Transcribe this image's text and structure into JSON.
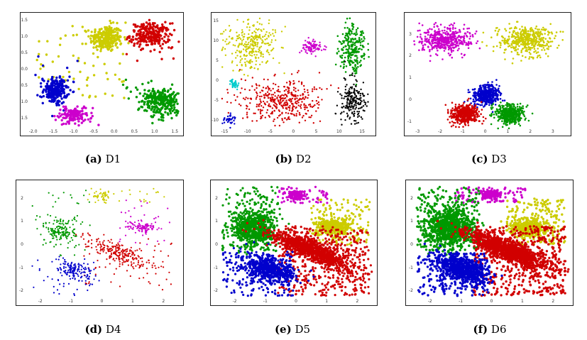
{
  "figure": {
    "captions": [
      {
        "id": "a",
        "letter": "(a)",
        "label": "D1"
      },
      {
        "id": "b",
        "letter": "(b)",
        "label": "D2"
      },
      {
        "id": "c",
        "letter": "(c)",
        "label": "D3"
      },
      {
        "id": "d",
        "letter": "(d)",
        "label": "D4"
      },
      {
        "id": "e",
        "letter": "(e)",
        "label": "D5"
      },
      {
        "id": "f",
        "letter": "(f)",
        "label": "D6"
      }
    ]
  },
  "colors": {
    "red": "#d10000",
    "green": "#009900",
    "blue": "#0000cc",
    "yellow": "#cccc00",
    "magenta": "#cc00cc",
    "cyan": "#00cccc",
    "black": "#000000"
  },
  "chart_data": [
    {
      "id": "D1",
      "type": "scatter",
      "xlim": [
        -2.1,
        1.6
      ],
      "ylim": [
        -1.8,
        1.6
      ],
      "xticks": [
        "-2.0",
        "-1.5",
        "-1.0",
        "-0.5",
        "0.0",
        "0.5",
        "1.0",
        "1.5"
      ],
      "yticks": [
        "1.5",
        "1.0",
        "0.5",
        "0.0",
        "-0.5",
        "-1.0",
        "-1.5"
      ],
      "xtick_values": [
        -2.0,
        -1.5,
        -1.0,
        -0.5,
        0.0,
        0.5,
        1.0,
        1.5
      ],
      "ytick_values": [
        1.5,
        1.0,
        0.5,
        0.0,
        -0.5,
        -1.0,
        -1.5
      ],
      "series": [
        {
          "color": "yellow",
          "clusters": [
            {
              "cx": -0.2,
              "cy": 0.95,
              "sx": 0.2,
              "sy": 0.2,
              "n": 260,
              "r": 1.7
            }
          ],
          "noise": {
            "n": 60,
            "x": [
              -2.0,
              0.3
            ],
            "y": [
              -0.9,
              1.5
            ]
          }
        },
        {
          "color": "red",
          "clusters": [
            {
              "cx": 0.9,
              "cy": 1.05,
              "sx": 0.25,
              "sy": 0.18,
              "n": 240,
              "r": 1.7
            }
          ],
          "noise": {
            "n": 20,
            "x": [
              0.3,
              1.5
            ],
            "y": [
              0.2,
              1.5
            ]
          }
        },
        {
          "color": "blue",
          "clusters": [
            {
              "cx": -1.45,
              "cy": -0.65,
              "sx": 0.15,
              "sy": 0.2,
              "n": 200,
              "r": 1.7
            }
          ],
          "noise": {
            "n": 15,
            "x": [
              -2.0,
              -0.9
            ],
            "y": [
              -1.1,
              0.5
            ]
          }
        },
        {
          "color": "magenta",
          "clusters": [
            {
              "cx": -1.0,
              "cy": -1.4,
              "sx": 0.18,
              "sy": 0.12,
              "n": 150,
              "r": 1.7
            }
          ],
          "noise": {
            "n": 10,
            "x": [
              -1.3,
              -0.5
            ],
            "y": [
              -1.7,
              -1.0
            ]
          }
        },
        {
          "color": "green",
          "clusters": [
            {
              "cx": 1.15,
              "cy": -0.95,
              "sx": 0.25,
              "sy": 0.22,
              "n": 280,
              "r": 1.7
            }
          ],
          "noise": {
            "n": 20,
            "x": [
              0.1,
              1.5
            ],
            "y": [
              -1.5,
              -0.3
            ]
          }
        }
      ]
    },
    {
      "id": "D2",
      "type": "scatter",
      "xlim": [
        -16,
        17
      ],
      "ylim": [
        -12,
        16
      ],
      "xticks": [
        "-15",
        "-10",
        "-5",
        "0",
        "5",
        "10",
        "15"
      ],
      "yticks": [
        "15",
        "10",
        "5",
        "0",
        "-5",
        "-10"
      ],
      "xtick_values": [
        -15,
        -10,
        -5,
        0,
        5,
        10,
        15
      ],
      "ytick_values": [
        15,
        10,
        5,
        0,
        -5,
        -10
      ],
      "series": [
        {
          "color": "yellow",
          "clusters": [
            {
              "cx": -9,
              "cy": 9,
              "sx": 2.8,
              "sy": 3.2,
              "n": 300,
              "r": 1.2
            }
          ]
        },
        {
          "color": "magenta",
          "clusters": [
            {
              "cx": 4,
              "cy": 8.5,
              "sx": 1.2,
              "sy": 0.8,
              "n": 80,
              "r": 1.2
            }
          ]
        },
        {
          "color": "green",
          "clusters": [
            {
              "cx": 13,
              "cy": 8,
              "sx": 1.4,
              "sy": 3,
              "n": 250,
              "r": 1.3
            }
          ]
        },
        {
          "color": "cyan",
          "clusters": [
            {
              "cx": -13,
              "cy": -0.8,
              "sx": 0.7,
              "sy": 0.7,
              "n": 40,
              "r": 1.2
            }
          ]
        },
        {
          "color": "red",
          "clusters": [
            {
              "cx": -2.5,
              "cy": -5,
              "sx": 4.5,
              "sy": 2.7,
              "n": 400,
              "r": 1.2
            }
          ]
        },
        {
          "color": "black",
          "clusters": [
            {
              "cx": 13,
              "cy": -5,
              "sx": 1.5,
              "sy": 2.7,
              "n": 200,
              "r": 1.2
            }
          ]
        },
        {
          "color": "blue",
          "clusters": [
            {
              "cx": -14,
              "cy": -10,
              "sx": 0.7,
              "sy": 0.6,
              "n": 35,
              "r": 1.2
            }
          ]
        }
      ]
    },
    {
      "id": "D3",
      "type": "scatter",
      "xlim": [
        -3.2,
        3.6
      ],
      "ylim": [
        -1.3,
        3.8
      ],
      "xticks": [
        "-3",
        "-2",
        "-1",
        "0",
        "1",
        "2",
        "3"
      ],
      "yticks": [
        "3",
        "2",
        "1",
        "0",
        "-1"
      ],
      "xtick_values": [
        -3,
        -2,
        -1,
        0,
        1,
        2,
        3
      ],
      "ytick_values": [
        3,
        2,
        1,
        0,
        -1
      ],
      "series": [
        {
          "color": "magenta",
          "clusters": [
            {
              "cx": -1.8,
              "cy": 2.75,
              "sx": 0.55,
              "sy": 0.32,
              "n": 450,
              "r": 1.3
            }
          ]
        },
        {
          "color": "yellow",
          "clusters": [
            {
              "cx": 1.8,
              "cy": 2.75,
              "sx": 0.55,
              "sy": 0.32,
              "n": 450,
              "r": 1.3
            }
          ]
        },
        {
          "color": "blue",
          "clusters": [
            {
              "cx": 0.05,
              "cy": 0.25,
              "sx": 0.3,
              "sy": 0.22,
              "n": 450,
              "r": 1.3
            }
          ]
        },
        {
          "color": "red",
          "clusters": [
            {
              "cx": -0.9,
              "cy": -0.65,
              "sx": 0.3,
              "sy": 0.22,
              "n": 450,
              "r": 1.3
            }
          ]
        },
        {
          "color": "green",
          "clusters": [
            {
              "cx": 1.1,
              "cy": -0.65,
              "sx": 0.3,
              "sy": 0.22,
              "n": 450,
              "r": 1.3
            }
          ]
        }
      ]
    },
    {
      "id": "D4",
      "type": "scatter",
      "xlim": [
        -2.5,
        2.5
      ],
      "ylim": [
        -2.3,
        2.6
      ],
      "xticks": [
        "-2",
        "-1",
        "0",
        "1",
        "2"
      ],
      "yticks": [
        "2",
        "1",
        "0",
        "-1",
        "-2"
      ],
      "xtick_values": [
        -2,
        -1,
        0,
        1,
        2
      ],
      "ytick_values": [
        2,
        1,
        0,
        -1,
        -2
      ],
      "series": [
        {
          "color": "yellow",
          "clusters": [
            {
              "cx": 0.0,
              "cy": 2.1,
              "sx": 0.15,
              "sy": 0.1,
              "n": 40,
              "r": 1.1
            }
          ],
          "noise": {
            "n": 25,
            "x": [
              -0.5,
              2.2
            ],
            "y": [
              1.8,
              2.5
            ]
          }
        },
        {
          "color": "green",
          "clusters": [
            {
              "cx": -1.3,
              "cy": 0.6,
              "sx": 0.25,
              "sy": 0.3,
              "n": 150,
              "r": 1.1
            }
          ],
          "noise": {
            "n": 40,
            "x": [
              -2.3,
              -0.3
            ],
            "y": [
              -0.5,
              2.4
            ]
          }
        },
        {
          "color": "magenta",
          "clusters": [
            {
              "cx": 1.3,
              "cy": 0.75,
              "sx": 0.25,
              "sy": 0.12,
              "n": 80,
              "r": 1.1
            }
          ],
          "noise": {
            "n": 40,
            "x": [
              0.5,
              2.2
            ],
            "y": [
              0,
              2.0
            ]
          }
        },
        {
          "color": "red",
          "clusters": [
            {
              "cx": 0.5,
              "cy": -0.3,
              "sx": 0.55,
              "sy": 0.18,
              "rot": -0.5,
              "n": 220,
              "r": 1.1
            }
          ],
          "noise": {
            "n": 60,
            "x": [
              -0.6,
              2.3
            ],
            "y": [
              -2.0,
              0.3
            ]
          }
        },
        {
          "color": "blue",
          "clusters": [
            {
              "cx": -0.9,
              "cy": -1.1,
              "sx": 0.35,
              "sy": 0.2,
              "rot": -0.5,
              "n": 140,
              "r": 1.1
            }
          ],
          "noise": {
            "n": 30,
            "x": [
              -2.3,
              -0.2
            ],
            "y": [
              -2.2,
              -0.5
            ]
          }
        }
      ]
    },
    {
      "id": "D5",
      "type": "scatter",
      "xlim": [
        -2.5,
        2.5
      ],
      "ylim": [
        -2.3,
        2.6
      ],
      "xticks": [
        "-2",
        "-1",
        "0",
        "1",
        "2"
      ],
      "yticks": [
        "2",
        "1",
        "0",
        "-1",
        "-2"
      ],
      "xtick_values": [
        -2,
        -1,
        0,
        1,
        2
      ],
      "ytick_values": [
        2,
        1,
        0,
        -1,
        -2
      ],
      "series": [
        {
          "color": "magenta",
          "clusters": [
            {
              "cx": 0.0,
              "cy": 2.15,
              "sx": 0.15,
              "sy": 0.1,
              "n": 110,
              "r": 1.6
            }
          ],
          "noise": {
            "n": 60,
            "x": [
              -0.6,
              1.1
            ],
            "y": [
              1.8,
              2.5
            ]
          }
        },
        {
          "color": "green",
          "clusters": [
            {
              "cx": -1.35,
              "cy": 0.7,
              "sx": 0.35,
              "sy": 0.4,
              "n": 650,
              "r": 1.6
            }
          ],
          "noise": {
            "n": 180,
            "x": [
              -2.4,
              -0.5
            ],
            "y": [
              -0.3,
              2.5
            ]
          }
        },
        {
          "color": "yellow",
          "clusters": [
            {
              "cx": 1.25,
              "cy": 0.75,
              "sx": 0.3,
              "sy": 0.18,
              "n": 320,
              "r": 1.6
            }
          ],
          "noise": {
            "n": 150,
            "x": [
              0.5,
              2.4
            ],
            "y": [
              0.0,
              2.0
            ]
          }
        },
        {
          "color": "red",
          "clusters": [
            {
              "cx": 0.55,
              "cy": -0.25,
              "sx": 0.75,
              "sy": 0.2,
              "rot": -0.5,
              "n": 900,
              "r": 1.6
            }
          ],
          "noise": {
            "n": 450,
            "x": [
              -0.6,
              2.4
            ],
            "y": [
              -2.2,
              0.8
            ]
          }
        },
        {
          "color": "blue",
          "clusters": [
            {
              "cx": -0.9,
              "cy": -1.05,
              "sx": 0.45,
              "sy": 0.25,
              "rot": -0.5,
              "n": 550,
              "r": 1.6
            }
          ],
          "noise": {
            "n": 160,
            "x": [
              -2.4,
              -0.1
            ],
            "y": [
              -2.2,
              -0.3
            ]
          }
        }
      ]
    },
    {
      "id": "D6",
      "type": "scatter",
      "xlim": [
        -2.5,
        2.5
      ],
      "ylim": [
        -2.3,
        2.6
      ],
      "xticks": [
        "-2",
        "-1",
        "0",
        "1",
        "2"
      ],
      "yticks": [
        "2",
        "1",
        "0",
        "-1",
        "-2"
      ],
      "xtick_values": [
        -2,
        -1,
        0,
        1,
        2
      ],
      "ytick_values": [
        2,
        1,
        0,
        -1,
        -2
      ],
      "series": [
        {
          "color": "magenta",
          "clusters": [
            {
              "cx": 0.0,
              "cy": 2.15,
              "sx": 0.15,
              "sy": 0.1,
              "n": 130,
              "r": 1.7
            }
          ],
          "noise": {
            "n": 80,
            "x": [
              -1.3,
              1.1
            ],
            "y": [
              1.8,
              2.5
            ]
          }
        },
        {
          "color": "green",
          "clusters": [
            {
              "cx": -1.35,
              "cy": 0.75,
              "sx": 0.38,
              "sy": 0.42,
              "n": 800,
              "r": 1.7
            }
          ],
          "noise": {
            "n": 220,
            "x": [
              -2.4,
              -0.4
            ],
            "y": [
              -0.4,
              2.5
            ]
          }
        },
        {
          "color": "yellow",
          "clusters": [
            {
              "cx": 1.25,
              "cy": 0.75,
              "sx": 0.3,
              "sy": 0.18,
              "n": 380,
              "r": 1.7
            }
          ],
          "noise": {
            "n": 180,
            "x": [
              0.5,
              2.4
            ],
            "y": [
              0.0,
              2.0
            ]
          }
        },
        {
          "color": "red",
          "clusters": [
            {
              "cx": 0.55,
              "cy": -0.25,
              "sx": 0.75,
              "sy": 0.2,
              "rot": -0.5,
              "n": 1000,
              "r": 1.7
            }
          ],
          "noise": {
            "n": 520,
            "x": [
              -0.6,
              2.4
            ],
            "y": [
              -2.2,
              0.8
            ]
          }
        },
        {
          "color": "blue",
          "clusters": [
            {
              "cx": -0.9,
              "cy": -1.05,
              "sx": 0.45,
              "sy": 0.25,
              "rot": -0.5,
              "n": 700,
              "r": 1.7
            }
          ],
          "noise": {
            "n": 200,
            "x": [
              -2.4,
              -0.1
            ],
            "y": [
              -2.2,
              -0.3
            ]
          }
        }
      ]
    }
  ]
}
